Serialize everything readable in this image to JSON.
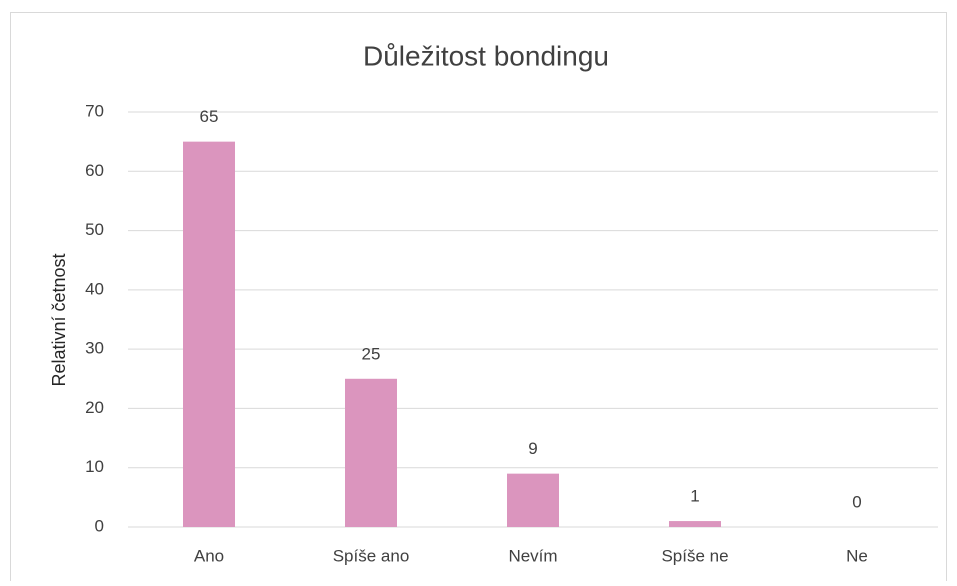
{
  "chart_data": {
    "type": "bar",
    "title": "Důležitost bondingu",
    "y_label": "Relativní četnost",
    "categories": [
      "Ano",
      "Spíše ano",
      "Nevím",
      "Spíše ne",
      "Ne"
    ],
    "values": [
      65,
      25,
      9,
      1,
      0
    ],
    "color": "#db95be",
    "ylim": [
      0,
      70
    ],
    "yticks": [
      0,
      10,
      20,
      30,
      40,
      50,
      60,
      70
    ],
    "grid": true
  }
}
